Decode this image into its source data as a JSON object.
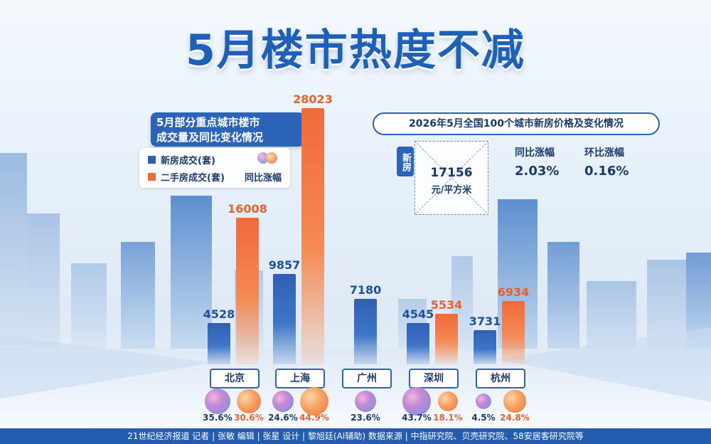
{
  "title": "5月楼市热度不减",
  "legend": {
    "title": "5月部分重点城市楼市\n成交量及同比变化情况",
    "new_label": "新房成交(套)",
    "second_label": "二手房成交(套)",
    "yoy_label": "同比涨幅"
  },
  "national": {
    "title": "2026年5月全国100个城市新房价格及变化情况",
    "tag": "新房",
    "price": "17156",
    "unit": "元/平方米",
    "yoy_label": "同比涨幅",
    "yoy_value": "2.03%",
    "mom_label": "环比涨幅",
    "mom_value": "0.16%"
  },
  "colors": {
    "new": "#2f5fb4",
    "second": "#f06a3a",
    "accent": "#2a63b8"
  },
  "chart_data": {
    "type": "bar",
    "categories": [
      "北京",
      "上海",
      "广州",
      "深圳",
      "杭州"
    ],
    "series": [
      {
        "name": "新房成交(套)",
        "values": [
          4528,
          9857,
          7180,
          4545,
          3731
        ],
        "labels": [
          "4528",
          "9857",
          "7180",
          "4545",
          "3731"
        ]
      },
      {
        "name": "二手房成交(套)",
        "values": [
          16008,
          28023,
          null,
          5534,
          6934
        ],
        "labels": [
          "16008",
          "28023",
          "",
          "5534",
          "6934"
        ]
      }
    ],
    "yoy": {
      "new": [
        "35.6%",
        "24.6%",
        "23.6%",
        "43.7%",
        "4.5%"
      ],
      "second": [
        "30.6%",
        "44.9%",
        "",
        "18.1%",
        "24.8%"
      ]
    }
  },
  "footer": "21世纪经济报道 记者 | 张敏 编辑 | 张星 设计 | 黎旭廷(AI辅助) 数据来源 | 中指研究院、贝壳研究院、58安居客研究院等"
}
